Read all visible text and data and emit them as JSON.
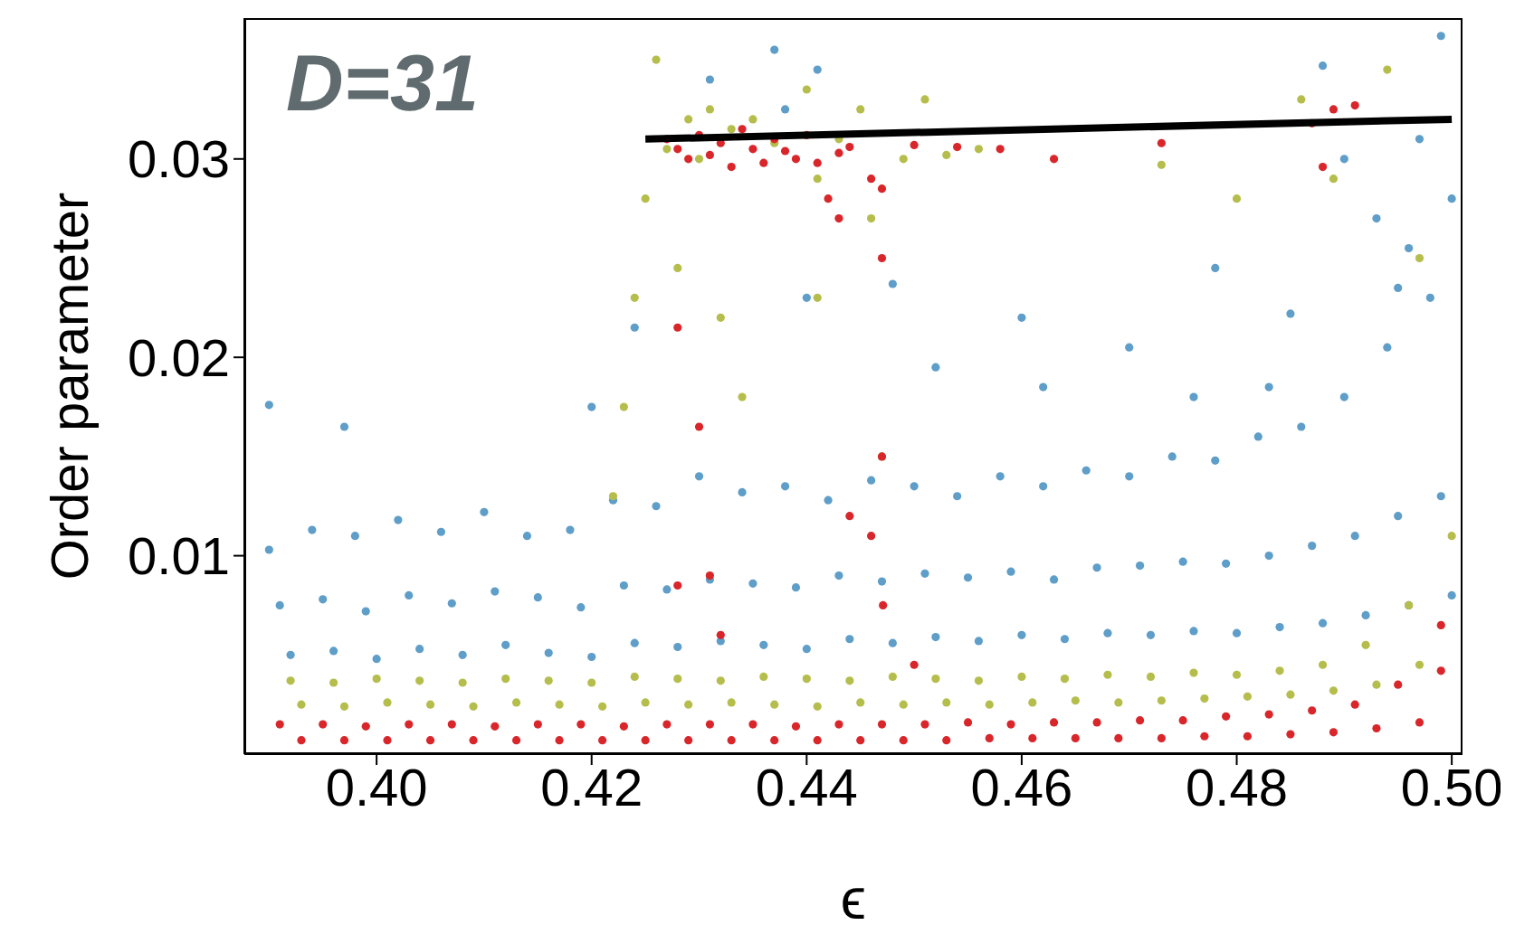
{
  "chart_data": {
    "type": "scatter",
    "xlabel": "ϵ",
    "ylabel": "Order parameter",
    "annotations": [
      "D=31"
    ],
    "xlim": [
      0.3877,
      0.501
    ],
    "ylim": [
      0,
      0.0371
    ],
    "xticks": [
      {
        "value": 0.4,
        "label": "0.40"
      },
      {
        "value": 0.42,
        "label": "0.42"
      },
      {
        "value": 0.44,
        "label": "0.44"
      },
      {
        "value": 0.46,
        "label": "0.46"
      },
      {
        "value": 0.48,
        "label": "0.48"
      },
      {
        "value": 0.5,
        "label": "0.50"
      }
    ],
    "yticks": [
      0.01,
      0.02,
      0.03
    ],
    "marker": "circle",
    "series": [
      {
        "color": "#5e9ec8",
        "x": [
          0.39,
          0.394,
          0.398,
          0.402,
          0.406,
          0.41,
          0.414,
          0.418,
          0.422,
          0.426,
          0.43,
          0.434,
          0.438,
          0.442,
          0.446,
          0.45,
          0.454,
          0.458,
          0.462,
          0.466,
          0.47,
          0.474,
          0.478,
          0.482,
          0.486,
          0.49,
          0.494,
          0.498,
          0.391,
          0.395,
          0.399,
          0.403,
          0.407,
          0.411,
          0.415,
          0.419,
          0.423,
          0.427,
          0.431,
          0.435,
          0.439,
          0.443,
          0.447,
          0.451,
          0.455,
          0.459,
          0.463,
          0.467,
          0.471,
          0.475,
          0.479,
          0.483,
          0.487,
          0.491,
          0.495,
          0.499,
          0.392,
          0.396,
          0.4,
          0.404,
          0.408,
          0.412,
          0.416,
          0.42,
          0.424,
          0.428,
          0.432,
          0.436,
          0.44,
          0.444,
          0.448,
          0.452,
          0.456,
          0.46,
          0.464,
          0.468,
          0.472,
          0.476,
          0.48,
          0.484,
          0.488,
          0.492,
          0.496,
          0.5,
          0.39,
          0.397,
          0.42,
          0.424,
          0.431,
          0.438,
          0.437,
          0.44,
          0.441,
          0.448,
          0.452,
          0.46,
          0.462,
          0.47,
          0.476,
          0.478,
          0.483,
          0.485,
          0.488,
          0.49,
          0.493,
          0.496,
          0.497,
          0.499,
          0.5,
          0.495
        ],
        "values": [
          0.0103,
          0.0113,
          0.011,
          0.0118,
          0.0112,
          0.0122,
          0.011,
          0.0113,
          0.0128,
          0.0125,
          0.014,
          0.0132,
          0.0135,
          0.0128,
          0.0138,
          0.0135,
          0.013,
          0.014,
          0.0135,
          0.0143,
          0.014,
          0.015,
          0.0148,
          0.016,
          0.0165,
          0.018,
          0.0205,
          0.023,
          0.0075,
          0.0078,
          0.0072,
          0.008,
          0.0076,
          0.0082,
          0.0079,
          0.0074,
          0.0085,
          0.0083,
          0.0088,
          0.0086,
          0.0084,
          0.009,
          0.0087,
          0.0091,
          0.0089,
          0.0092,
          0.0088,
          0.0094,
          0.0095,
          0.0097,
          0.0096,
          0.01,
          0.0105,
          0.011,
          0.012,
          0.013,
          0.005,
          0.0052,
          0.0048,
          0.0053,
          0.005,
          0.0055,
          0.0051,
          0.0049,
          0.0056,
          0.0054,
          0.0057,
          0.0055,
          0.0053,
          0.0058,
          0.0056,
          0.0059,
          0.0057,
          0.006,
          0.0058,
          0.0061,
          0.006,
          0.0062,
          0.0061,
          0.0064,
          0.0066,
          0.007,
          0.0075,
          0.008,
          0.0176,
          0.0165,
          0.0175,
          0.0215,
          0.034,
          0.0325,
          0.0355,
          0.023,
          0.0345,
          0.0237,
          0.0195,
          0.022,
          0.0185,
          0.0205,
          0.018,
          0.0245,
          0.0185,
          0.0222,
          0.0347,
          0.03,
          0.027,
          0.0255,
          0.031,
          0.0362,
          0.028,
          0.0235
        ]
      },
      {
        "color": "#b5be4c",
        "x": [
          0.392,
          0.396,
          0.4,
          0.404,
          0.408,
          0.412,
          0.416,
          0.42,
          0.424,
          0.428,
          0.432,
          0.436,
          0.44,
          0.444,
          0.448,
          0.452,
          0.456,
          0.46,
          0.464,
          0.468,
          0.472,
          0.476,
          0.48,
          0.484,
          0.488,
          0.492,
          0.496,
          0.5,
          0.393,
          0.397,
          0.401,
          0.405,
          0.409,
          0.413,
          0.417,
          0.421,
          0.425,
          0.429,
          0.433,
          0.437,
          0.441,
          0.445,
          0.449,
          0.453,
          0.457,
          0.461,
          0.465,
          0.469,
          0.473,
          0.477,
          0.481,
          0.485,
          0.489,
          0.493,
          0.497,
          0.422,
          0.423,
          0.424,
          0.425,
          0.426,
          0.427,
          0.428,
          0.429,
          0.43,
          0.431,
          0.433,
          0.435,
          0.437,
          0.44,
          0.441,
          0.443,
          0.445,
          0.446,
          0.447,
          0.449,
          0.451,
          0.453,
          0.456,
          0.473,
          0.48,
          0.486,
          0.489,
          0.494,
          0.497,
          0.432,
          0.441,
          0.434
        ],
        "values": [
          0.0037,
          0.0036,
          0.0038,
          0.0037,
          0.0036,
          0.0038,
          0.0037,
          0.0036,
          0.0039,
          0.0038,
          0.0037,
          0.0039,
          0.0038,
          0.0037,
          0.0039,
          0.0038,
          0.0037,
          0.0039,
          0.0038,
          0.004,
          0.0039,
          0.0041,
          0.004,
          0.0042,
          0.0045,
          0.0055,
          0.0075,
          0.011,
          0.0025,
          0.0024,
          0.0026,
          0.0025,
          0.0024,
          0.0026,
          0.0025,
          0.0024,
          0.0026,
          0.0025,
          0.0026,
          0.0025,
          0.0024,
          0.0026,
          0.0025,
          0.0026,
          0.0025,
          0.0026,
          0.0027,
          0.0026,
          0.0027,
          0.0028,
          0.0029,
          0.003,
          0.0032,
          0.0035,
          0.0045,
          0.013,
          0.0175,
          0.023,
          0.028,
          0.035,
          0.0305,
          0.0245,
          0.032,
          0.03,
          0.0325,
          0.0315,
          0.032,
          0.0308,
          0.0335,
          0.029,
          0.031,
          0.0325,
          0.027,
          0.015,
          0.03,
          0.033,
          0.0302,
          0.0305,
          0.0297,
          0.028,
          0.033,
          0.029,
          0.0345,
          0.025,
          0.022,
          0.023,
          0.018
        ]
      },
      {
        "color": "#d8262b",
        "x": [
          0.391,
          0.395,
          0.399,
          0.403,
          0.407,
          0.411,
          0.415,
          0.419,
          0.423,
          0.427,
          0.431,
          0.435,
          0.439,
          0.443,
          0.447,
          0.451,
          0.455,
          0.459,
          0.463,
          0.467,
          0.471,
          0.475,
          0.479,
          0.483,
          0.487,
          0.491,
          0.495,
          0.499,
          0.393,
          0.397,
          0.401,
          0.405,
          0.409,
          0.413,
          0.417,
          0.421,
          0.425,
          0.429,
          0.433,
          0.437,
          0.441,
          0.445,
          0.449,
          0.453,
          0.457,
          0.461,
          0.465,
          0.469,
          0.473,
          0.477,
          0.481,
          0.485,
          0.489,
          0.493,
          0.497,
          0.427,
          0.428,
          0.429,
          0.43,
          0.431,
          0.432,
          0.433,
          0.434,
          0.435,
          0.436,
          0.437,
          0.438,
          0.439,
          0.44,
          0.441,
          0.442,
          0.443,
          0.444,
          0.446,
          0.447,
          0.45,
          0.454,
          0.458,
          0.463,
          0.473,
          0.487,
          0.489,
          0.491,
          0.488,
          0.428,
          0.43,
          0.431,
          0.443,
          0.447,
          0.444,
          0.446,
          0.428,
          0.432,
          0.447,
          0.4471,
          0.45,
          0.499
        ],
        "values": [
          0.0015,
          0.0015,
          0.0014,
          0.0015,
          0.0015,
          0.0014,
          0.0015,
          0.0015,
          0.0014,
          0.0015,
          0.0015,
          0.0015,
          0.0014,
          0.0015,
          0.0015,
          0.0015,
          0.0016,
          0.0015,
          0.0016,
          0.0016,
          0.0017,
          0.0017,
          0.0019,
          0.002,
          0.0022,
          0.0025,
          0.0035,
          0.0042,
          0.0007,
          0.0007,
          0.0007,
          0.0007,
          0.0007,
          0.0007,
          0.0007,
          0.0007,
          0.0007,
          0.0007,
          0.0007,
          0.0007,
          0.0007,
          0.0007,
          0.0007,
          0.0007,
          0.0008,
          0.0008,
          0.0008,
          0.0008,
          0.0008,
          0.0009,
          0.0009,
          0.001,
          0.0011,
          0.0013,
          0.0016,
          0.031,
          0.0305,
          0.03,
          0.0312,
          0.0302,
          0.0308,
          0.0296,
          0.0315,
          0.0305,
          0.0298,
          0.031,
          0.0304,
          0.03,
          0.0312,
          0.0298,
          0.028,
          0.0303,
          0.0306,
          0.029,
          0.0285,
          0.0307,
          0.0306,
          0.0305,
          0.03,
          0.0308,
          0.0318,
          0.0325,
          0.0327,
          0.0296,
          0.0215,
          0.0165,
          0.009,
          0.027,
          0.025,
          0.012,
          0.011,
          0.0085,
          0.006,
          0.015,
          0.0075,
          0.0045,
          0.0065
        ]
      },
      {
        "type": "line",
        "color": "#000000",
        "marker": "none",
        "x": [
          0.425,
          0.5
        ],
        "values": [
          0.031,
          0.032
        ]
      }
    ]
  }
}
